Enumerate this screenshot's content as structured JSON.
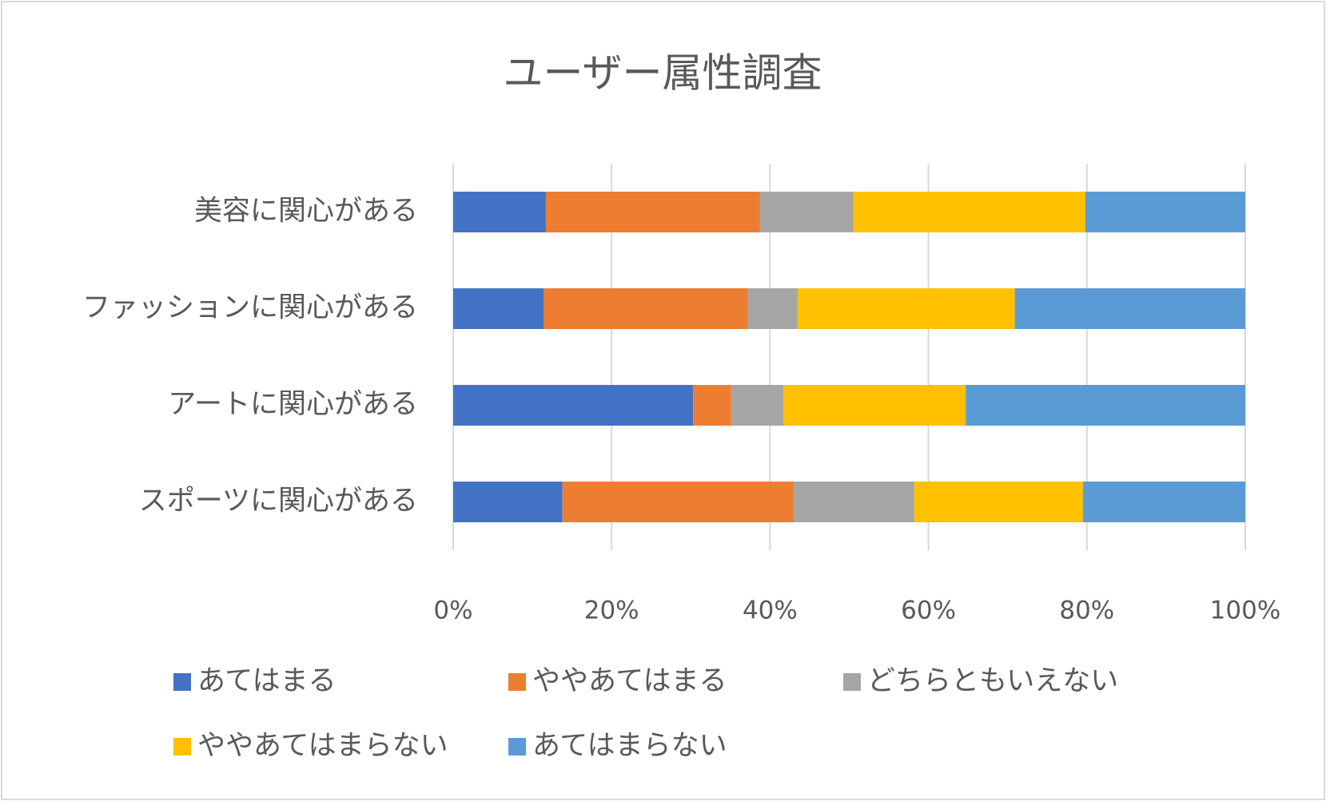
{
  "chart_data": {
    "type": "bar",
    "orientation": "horizontal",
    "stacked": true,
    "title": "ユーザー属性調査",
    "categories": [
      "美容に関心がある",
      "ファッションに関心がある",
      "アートに関心がある",
      "スポーツに関心がある"
    ],
    "series": [
      {
        "name": "あてはまる",
        "color": "#4472c4",
        "values": [
          11.7,
          11.4,
          30.3,
          13.8
        ]
      },
      {
        "name": "ややあてはまる",
        "color": "#ed7d31",
        "values": [
          27.0,
          25.8,
          4.8,
          29.2
        ]
      },
      {
        "name": "どちらともいえない",
        "color": "#a5a5a5",
        "values": [
          11.8,
          6.3,
          6.6,
          15.2
        ]
      },
      {
        "name": "ややあてはまらない",
        "color": "#ffc000",
        "values": [
          29.3,
          27.4,
          23.0,
          21.3
        ]
      },
      {
        "name": "あてはまらない",
        "color": "#5b9bd5",
        "values": [
          20.2,
          29.1,
          35.3,
          20.5
        ]
      }
    ],
    "xlim": [
      0,
      100
    ],
    "xticks": [
      {
        "value": 0,
        "label": "0%"
      },
      {
        "value": 20,
        "label": "20%"
      },
      {
        "value": 40,
        "label": "40%"
      },
      {
        "value": 60,
        "label": "60%"
      },
      {
        "value": 80,
        "label": "80%"
      },
      {
        "value": 100,
        "label": "100%"
      }
    ],
    "grid": true,
    "legend": "bottom"
  }
}
